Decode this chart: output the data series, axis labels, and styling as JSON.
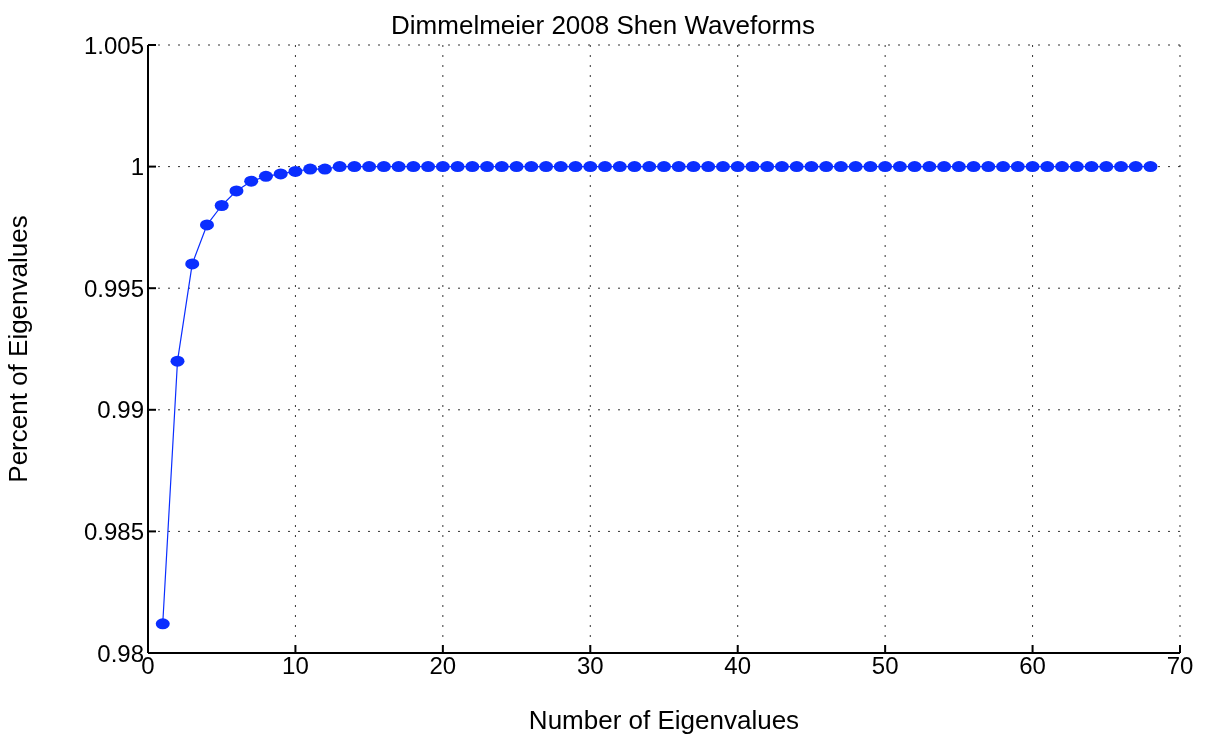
{
  "chart_data": {
    "type": "line",
    "title": "Dimmelmeier 2008 Shen Waveforms",
    "xlabel": "Number of Eigenvalues",
    "ylabel": "Percent of Eigenvalues",
    "x": [
      1,
      2,
      3,
      4,
      5,
      6,
      7,
      8,
      9,
      10,
      11,
      12,
      13,
      14,
      15,
      16,
      17,
      18,
      19,
      20,
      21,
      22,
      23,
      24,
      25,
      26,
      27,
      28,
      29,
      30,
      31,
      32,
      33,
      34,
      35,
      36,
      37,
      38,
      39,
      40,
      41,
      42,
      43,
      44,
      45,
      46,
      47,
      48,
      49,
      50,
      51,
      52,
      53,
      54,
      55,
      56,
      57,
      58,
      59,
      60,
      61,
      62,
      63,
      64,
      65,
      66,
      67,
      68
    ],
    "series": [
      {
        "color": "#0a2eff",
        "values": [
          0.9812,
          0.992,
          0.996,
          0.9976,
          0.9984,
          0.999,
          0.9994,
          0.9996,
          0.9997,
          0.9998,
          0.9999,
          0.9999,
          1,
          1,
          1,
          1,
          1,
          1,
          1,
          1,
          1,
          1,
          1,
          1,
          1,
          1,
          1,
          1,
          1,
          1,
          1,
          1,
          1,
          1,
          1,
          1,
          1,
          1,
          1,
          1,
          1,
          1,
          1,
          1,
          1,
          1,
          1,
          1,
          1,
          1,
          1,
          1,
          1,
          1,
          1,
          1,
          1,
          1,
          1,
          1,
          1,
          1,
          1,
          1,
          1,
          1,
          1,
          1
        ]
      }
    ],
    "xlim": [
      0,
      70
    ],
    "xticks": [
      0,
      10,
      20,
      30,
      40,
      50,
      60,
      70
    ],
    "ylim": [
      0.98,
      1.005
    ],
    "yticks": [
      0.98,
      0.985,
      0.99,
      0.995,
      1,
      1.005
    ],
    "grid": true,
    "marker": "circle",
    "line_style": "solid"
  }
}
